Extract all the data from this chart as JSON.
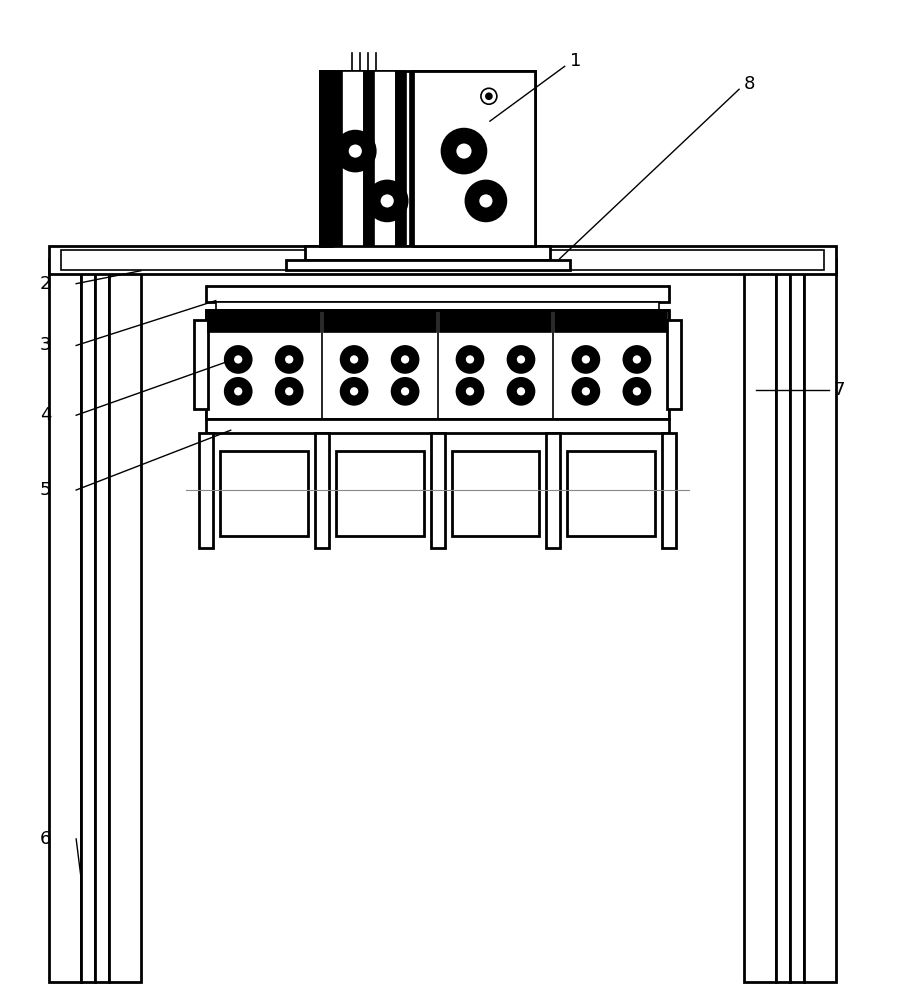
{
  "bg_color": "#ffffff",
  "line_color": "#000000",
  "fig_width": 9.03,
  "fig_height": 10.0,
  "label_fontsize": 13,
  "lw_main": 2.0,
  "lw_thin": 1.2
}
